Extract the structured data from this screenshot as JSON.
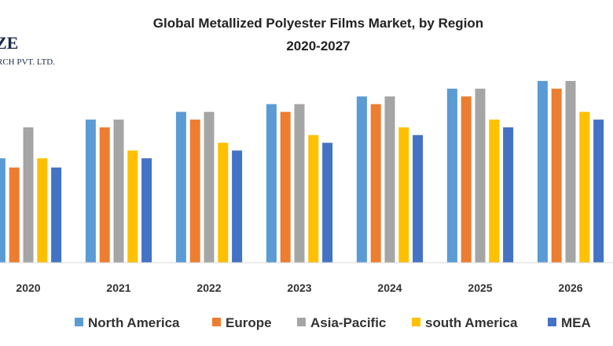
{
  "logo": {
    "line1": "ZE",
    "line2": "RCH PVT. LTD."
  },
  "chart_data": {
    "type": "bar",
    "title": "Global Metallized Polyester Films Market, by Region",
    "subtitle": "2020-2027",
    "xlabel": "",
    "ylabel": "",
    "categories": [
      "2020",
      "2021",
      "2022",
      "2023",
      "2024",
      "2025",
      "2026"
    ],
    "series": [
      {
        "name": "North America",
        "color": "#5b9bd5",
        "values": [
          13.5,
          18.5,
          19.5,
          20.5,
          21.5,
          22.5,
          23.5
        ]
      },
      {
        "name": "Europe",
        "color": "#ed7d31",
        "values": [
          12.3,
          17.5,
          18.5,
          19.5,
          20.5,
          21.5,
          22.5
        ]
      },
      {
        "name": "Asia-Pacific",
        "color": "#a5a5a5",
        "values": [
          17.5,
          18.5,
          19.5,
          20.5,
          21.5,
          22.5,
          23.5
        ]
      },
      {
        "name": "south America",
        "color": "#ffc000",
        "values": [
          13.5,
          14.5,
          15.5,
          16.5,
          17.5,
          18.5,
          19.5
        ]
      },
      {
        "name": "MEA",
        "color": "#4472c4",
        "values": [
          12.3,
          13.5,
          14.5,
          15.5,
          16.5,
          17.5,
          18.5
        ]
      }
    ],
    "ylim": [
      0,
      24
    ],
    "grid": false,
    "legend": "bottom"
  }
}
